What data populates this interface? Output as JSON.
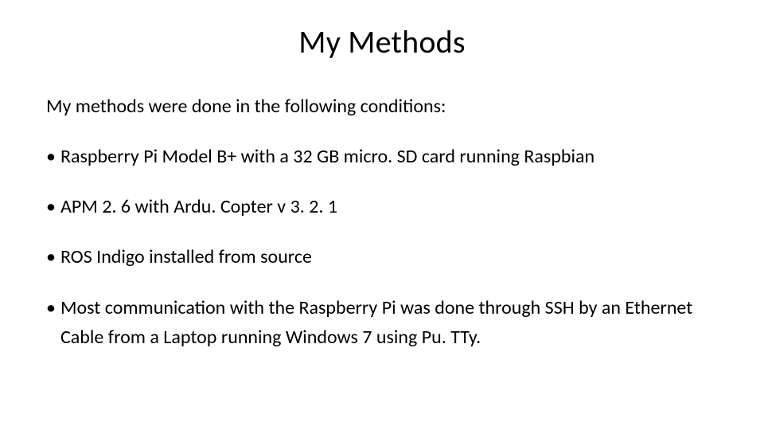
{
  "slide": {
    "title": "My Methods",
    "intro": "My methods were done in the following conditions:",
    "bullets": [
      "Raspberry Pi Model B+ with a 32 GB micro. SD card running Raspbian",
      "APM 2. 6 with Ardu. Copter v 3. 2. 1",
      "ROS Indigo installed from source",
      "Most communication with the Raspberry Pi was done through SSH by an Ethernet Cable from a Laptop running Windows 7 using Pu. TTy."
    ],
    "colors": {
      "background": "#ffffff",
      "text": "#000000"
    },
    "typography": {
      "title_fontsize": 40,
      "body_fontsize": 24,
      "font_family": "Calibri"
    }
  }
}
